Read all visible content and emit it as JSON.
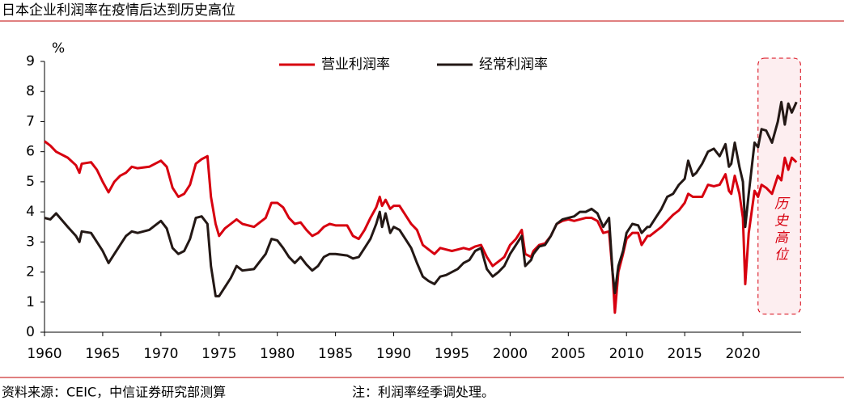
{
  "chart_data": {
    "type": "line",
    "title": "日本企业利润率在疫情后达到历史高位",
    "ylabel": "%",
    "source": "资料来源：CEIC，中信证券研究部测算",
    "note": "注：利润率经季调处理。",
    "annotation": "历史高位",
    "legend": "top",
    "xlim": [
      1960,
      2025
    ],
    "xticks": [
      1960,
      1965,
      1970,
      1975,
      1980,
      1985,
      1990,
      1995,
      2000,
      2005,
      2010,
      2015,
      2020
    ],
    "ylim": [
      0,
      9
    ],
    "yticks": [
      0,
      1,
      2,
      3,
      4,
      5,
      6,
      7,
      8,
      9
    ],
    "x": [
      1960,
      1960.5,
      1961,
      1962,
      1962.7,
      1963,
      1963.2,
      1964,
      1964.5,
      1965,
      1965.5,
      1966,
      1966.5,
      1967,
      1967.5,
      1968,
      1969,
      1970,
      1970.5,
      1971,
      1971.5,
      1972,
      1972.5,
      1973,
      1973.5,
      1974,
      1974.3,
      1974.7,
      1975,
      1975.5,
      1976,
      1976.5,
      1977,
      1978,
      1979,
      1979.5,
      1980,
      1980.5,
      1981,
      1981.5,
      1982,
      1982.5,
      1983,
      1983.5,
      1984,
      1984.5,
      1985,
      1986,
      1986.5,
      1987,
      1987.5,
      1988,
      1988.5,
      1988.8,
      1989,
      1989.3,
      1989.7,
      1990,
      1990.5,
      1991,
      1991.5,
      1992,
      1992.5,
      1993,
      1993.5,
      1994,
      1994.5,
      1995,
      1995.5,
      1996,
      1996.5,
      1997,
      1997.5,
      1998,
      1998.5,
      1999,
      1999.5,
      2000,
      2000.5,
      2001,
      2001.3,
      2001.8,
      2002,
      2002.5,
      2003,
      2003.5,
      2004,
      2004.5,
      2005,
      2005.5,
      2006,
      2006.5,
      2007,
      2007.5,
      2008,
      2008.5,
      2008.8,
      2009,
      2009.3,
      2009.7,
      2010,
      2010.5,
      2011,
      2011.3,
      2011.8,
      2012,
      2012.5,
      2013,
      2013.5,
      2014,
      2014.5,
      2015,
      2015.3,
      2015.7,
      2016,
      2016.5,
      2017,
      2017.5,
      2018,
      2018.5,
      2018.8,
      2019,
      2019.3,
      2019.7,
      2020,
      2020.2,
      2020.5,
      2021,
      2021.3,
      2021.6,
      2022,
      2022.5,
      2023,
      2023.3,
      2023.6,
      2023.9,
      2024.2,
      2024.6
    ],
    "series": [
      {
        "name": "营业利润率",
        "color": "#d7000f",
        "values": [
          6.35,
          6.2,
          6.0,
          5.8,
          5.55,
          5.3,
          5.6,
          5.65,
          5.4,
          5.0,
          4.65,
          5.0,
          5.2,
          5.3,
          5.5,
          5.45,
          5.5,
          5.7,
          5.5,
          4.8,
          4.5,
          4.6,
          4.9,
          5.6,
          5.75,
          5.85,
          4.5,
          3.6,
          3.2,
          3.45,
          3.6,
          3.75,
          3.6,
          3.5,
          3.8,
          4.3,
          4.3,
          4.15,
          3.8,
          3.6,
          3.65,
          3.4,
          3.2,
          3.3,
          3.5,
          3.6,
          3.55,
          3.55,
          3.2,
          3.1,
          3.4,
          3.8,
          4.15,
          4.5,
          4.2,
          4.4,
          4.1,
          4.2,
          4.2,
          3.9,
          3.6,
          3.4,
          2.9,
          2.75,
          2.6,
          2.8,
          2.75,
          2.7,
          2.75,
          2.8,
          2.75,
          2.85,
          2.9,
          2.5,
          2.2,
          2.35,
          2.5,
          2.9,
          3.1,
          3.4,
          2.6,
          2.5,
          2.7,
          2.9,
          2.95,
          3.2,
          3.6,
          3.7,
          3.75,
          3.7,
          3.75,
          3.8,
          3.8,
          3.7,
          3.3,
          3.35,
          2.0,
          0.65,
          2.0,
          2.6,
          3.1,
          3.3,
          3.3,
          2.9,
          3.2,
          3.2,
          3.35,
          3.5,
          3.7,
          3.9,
          4.05,
          4.3,
          4.6,
          4.5,
          4.5,
          4.5,
          4.9,
          4.85,
          4.9,
          5.25,
          4.7,
          4.6,
          5.2,
          4.6,
          3.8,
          1.6,
          3.3,
          4.7,
          4.5,
          4.9,
          4.8,
          4.6,
          5.2,
          5.05,
          5.8,
          5.4,
          5.8,
          5.65
        ]
      },
      {
        "name": "经常利润率",
        "color": "#231815",
        "values": [
          3.8,
          3.75,
          3.95,
          3.5,
          3.2,
          3.0,
          3.35,
          3.3,
          3.0,
          2.7,
          2.3,
          2.6,
          2.9,
          3.2,
          3.35,
          3.3,
          3.4,
          3.7,
          3.45,
          2.8,
          2.6,
          2.7,
          3.1,
          3.8,
          3.85,
          3.6,
          2.2,
          1.2,
          1.2,
          1.5,
          1.8,
          2.2,
          2.05,
          2.1,
          2.6,
          3.1,
          3.05,
          2.8,
          2.5,
          2.3,
          2.5,
          2.25,
          2.05,
          2.2,
          2.5,
          2.6,
          2.6,
          2.55,
          2.45,
          2.5,
          2.8,
          3.1,
          3.6,
          4.0,
          3.5,
          3.95,
          3.3,
          3.5,
          3.4,
          3.1,
          2.8,
          2.3,
          1.85,
          1.7,
          1.6,
          1.85,
          1.9,
          2.0,
          2.1,
          2.3,
          2.4,
          2.7,
          2.8,
          2.1,
          1.85,
          2.0,
          2.2,
          2.6,
          2.9,
          3.2,
          2.2,
          2.4,
          2.6,
          2.85,
          2.9,
          3.2,
          3.6,
          3.75,
          3.8,
          3.85,
          4.0,
          4.0,
          4.1,
          3.95,
          3.5,
          3.8,
          2.0,
          1.3,
          2.2,
          2.7,
          3.3,
          3.6,
          3.55,
          3.3,
          3.5,
          3.5,
          3.8,
          4.1,
          4.5,
          4.6,
          4.9,
          5.1,
          5.7,
          5.2,
          5.3,
          5.6,
          6.0,
          6.1,
          5.85,
          6.25,
          5.5,
          5.6,
          6.3,
          5.5,
          5.0,
          3.5,
          4.6,
          6.3,
          6.15,
          6.75,
          6.7,
          6.3,
          7.0,
          7.65,
          6.9,
          7.6,
          7.3,
          7.65
        ]
      }
    ]
  }
}
